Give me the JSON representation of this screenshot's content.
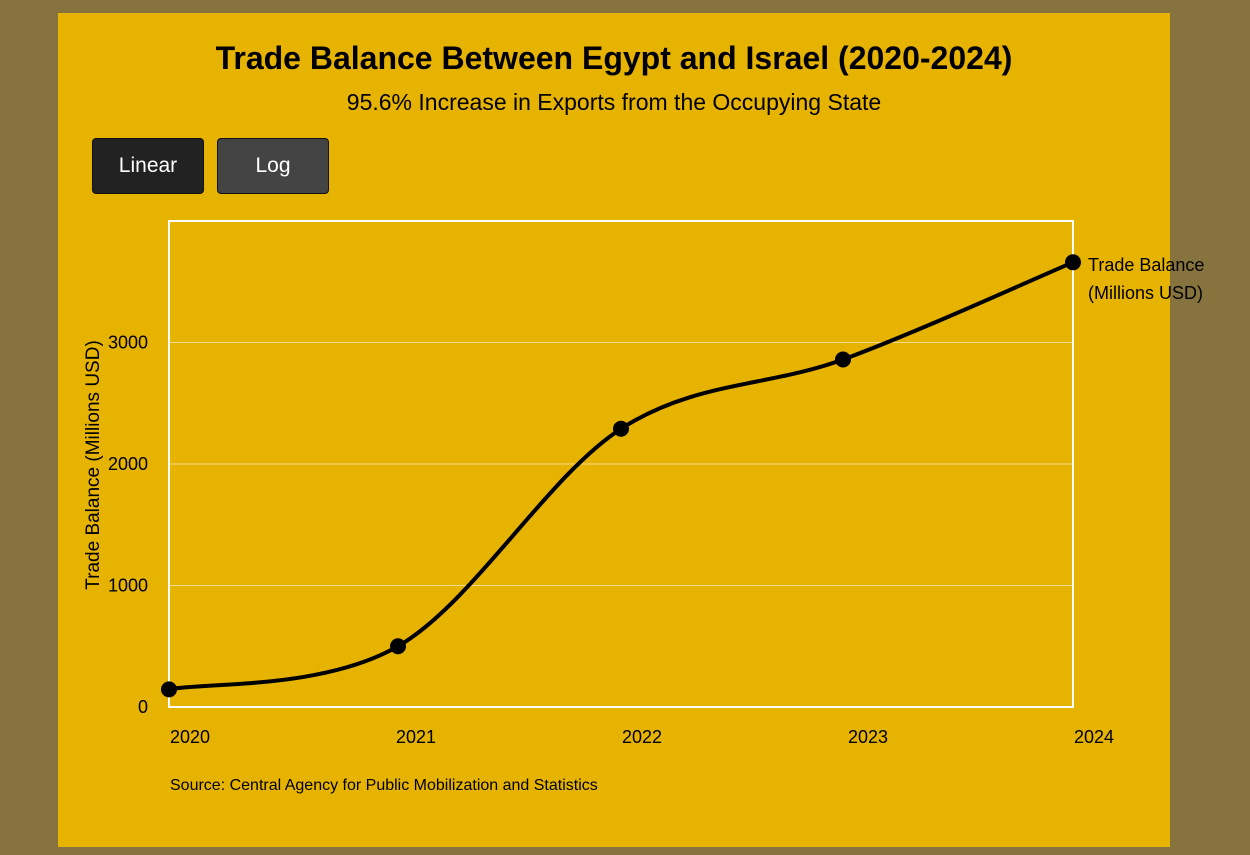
{
  "colors": {
    "page_background": "#87733d",
    "panel_background": "#e6b300",
    "line": "#000000",
    "grid": "#f3dd8a",
    "frame": "#ffffff",
    "button_linear": "#222222",
    "button_log": "#444444"
  },
  "header": {
    "title": "Trade Balance Between Egypt and Israel (2020-2024)",
    "subtitle": "95.6% Increase in Exports from the Occupying State"
  },
  "controls": {
    "linear_label": "Linear",
    "log_label": "Log",
    "active_scale": "Linear"
  },
  "chart_data": {
    "type": "line",
    "ylabel": "Trade Balance (Millions USD)",
    "x": [
      "2020",
      "2021",
      "2022",
      "2023",
      "2024"
    ],
    "series": [
      {
        "name": "Trade Balance (Millions USD)",
        "values": [
          145,
          500,
          2290,
          2860,
          3660
        ]
      }
    ],
    "ylim": [
      0,
      4000
    ],
    "yticks": [
      0,
      1000,
      2000,
      3000
    ],
    "scale": "linear",
    "grid": true,
    "legend_placement": "right, at end of line",
    "legend_lines": [
      "Trade Balance",
      "(Millions USD)"
    ]
  },
  "footer": {
    "source": "Source: Central Agency for Public Mobilization and Statistics"
  }
}
